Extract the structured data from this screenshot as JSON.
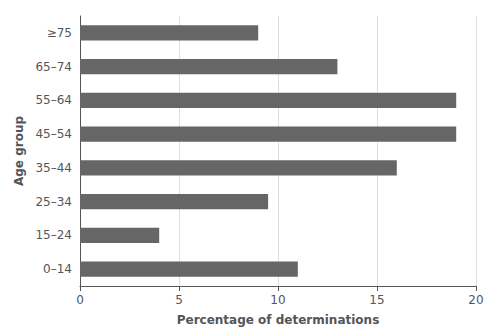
{
  "chart_data": {
    "type": "bar",
    "orientation": "horizontal",
    "categories": [
      "0–14",
      "15–24",
      "25–34",
      "35–44",
      "45–54",
      "55–64",
      "65–74",
      "≥75"
    ],
    "values": [
      11,
      4,
      9.5,
      16,
      19,
      19,
      13,
      9
    ],
    "color": "#666666",
    "xlabel": "Percentage of determinations",
    "ylabel": "Age group",
    "xlim": [
      0,
      20
    ],
    "xticks": [
      0,
      5,
      10,
      15,
      20
    ],
    "grid": true
  }
}
